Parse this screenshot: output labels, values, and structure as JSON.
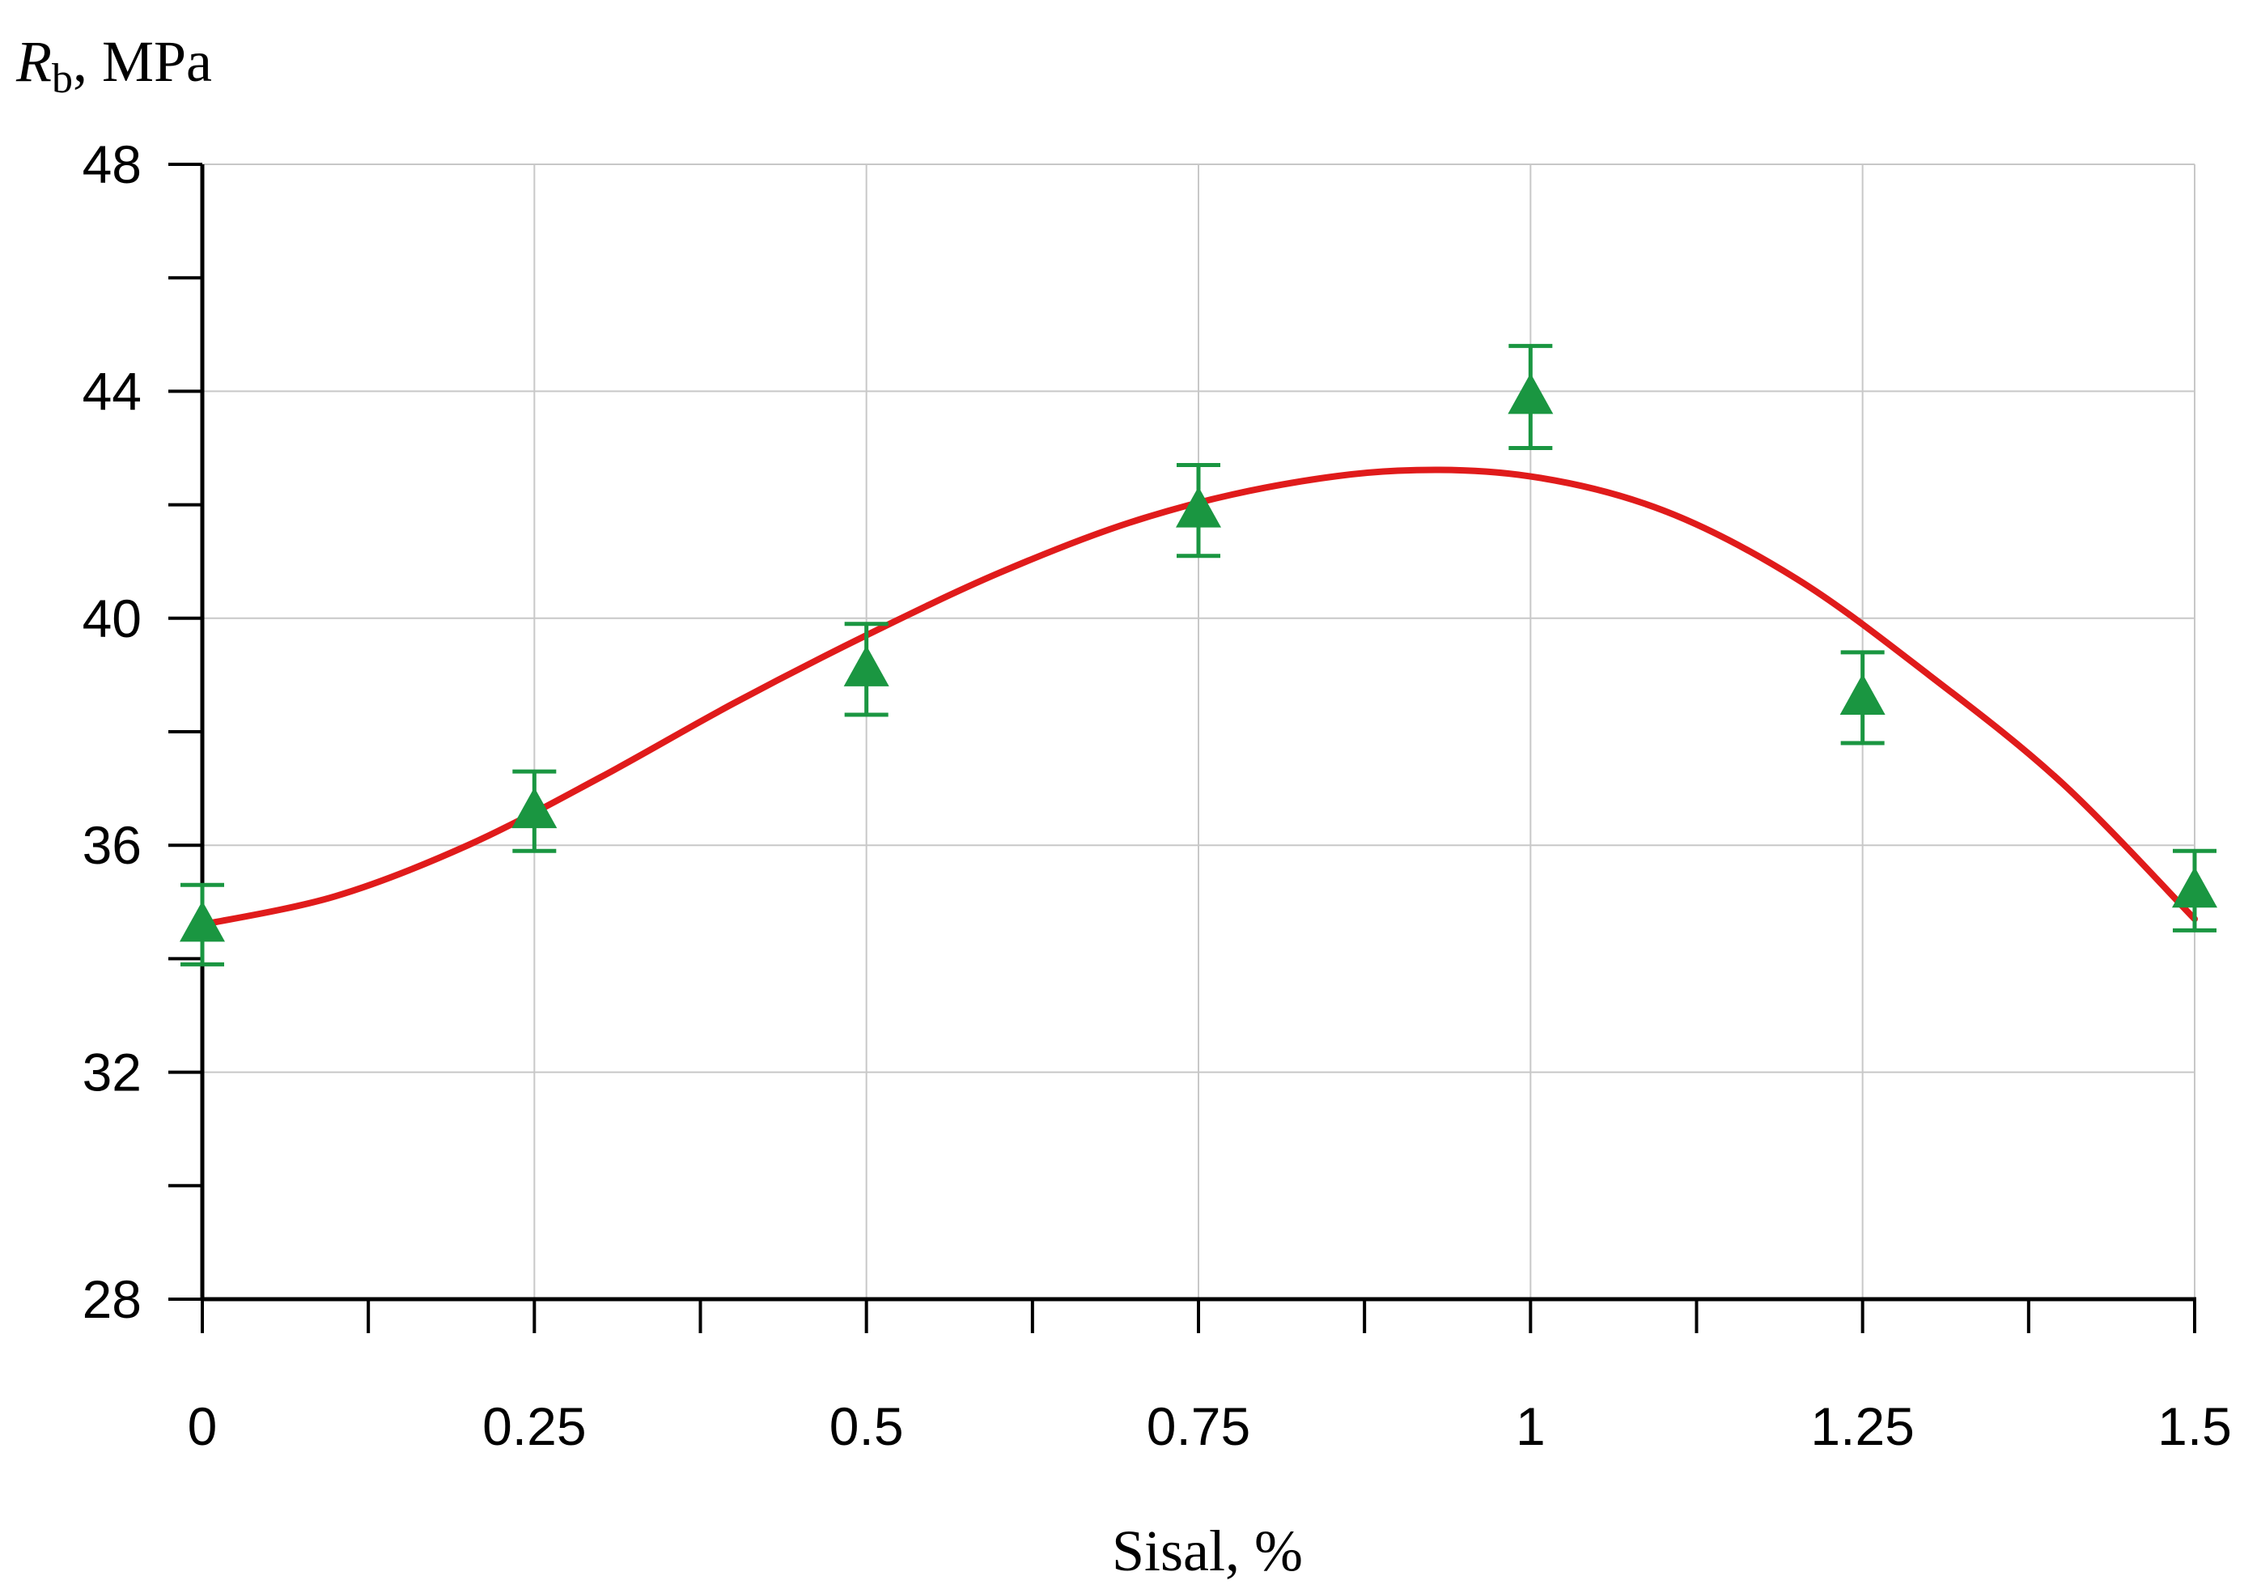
{
  "chart_data": {
    "type": "scatter",
    "xlabel": "Sisal, %",
    "ylabel": {
      "main": "R",
      "sub": "b",
      "unit": ", MPa"
    },
    "xlim": [
      0,
      1.5
    ],
    "ylim": [
      28,
      48
    ],
    "x_ticks": [
      0,
      0.25,
      0.5,
      0.75,
      1,
      1.25,
      1.5
    ],
    "x_tick_labels": [
      "0",
      "0.25",
      "0.5",
      "0.75",
      "1",
      "1.25",
      "1.5"
    ],
    "x_minor_ticks": [
      0.125,
      0.375,
      0.625,
      0.875,
      1.125,
      1.375
    ],
    "y_ticks": [
      28,
      32,
      36,
      40,
      44,
      48
    ],
    "y_tick_labels": [
      "28",
      "32",
      "36",
      "40",
      "44",
      "48"
    ],
    "y_minor_ticks": [
      30,
      34,
      38,
      42,
      46
    ],
    "grid": true,
    "series": [
      {
        "kind": "points",
        "marker": "triangle",
        "color": "#1a9641",
        "x": [
          0,
          0.25,
          0.5,
          0.75,
          1,
          1.25,
          1.5
        ],
        "y": [
          34.6,
          36.6,
          39.1,
          41.9,
          43.9,
          38.6,
          35.2
        ],
        "err_low": [
          0.7,
          0.7,
          0.8,
          0.8,
          0.9,
          0.8,
          0.7
        ],
        "err_high": [
          0.7,
          0.7,
          0.8,
          0.8,
          0.9,
          0.8,
          0.7
        ]
      },
      {
        "kind": "fit",
        "color": "#e01b1b",
        "x": [
          0,
          0.1,
          0.2,
          0.3,
          0.4,
          0.5,
          0.6,
          0.7,
          0.8,
          0.9,
          1.0,
          1.1,
          1.2,
          1.3,
          1.4,
          1.5
        ],
        "y": [
          34.6,
          35.1,
          36.0,
          37.2,
          38.5,
          39.7,
          40.8,
          41.7,
          42.3,
          42.6,
          42.5,
          41.9,
          40.7,
          39.0,
          37.1,
          34.7
        ]
      }
    ]
  }
}
